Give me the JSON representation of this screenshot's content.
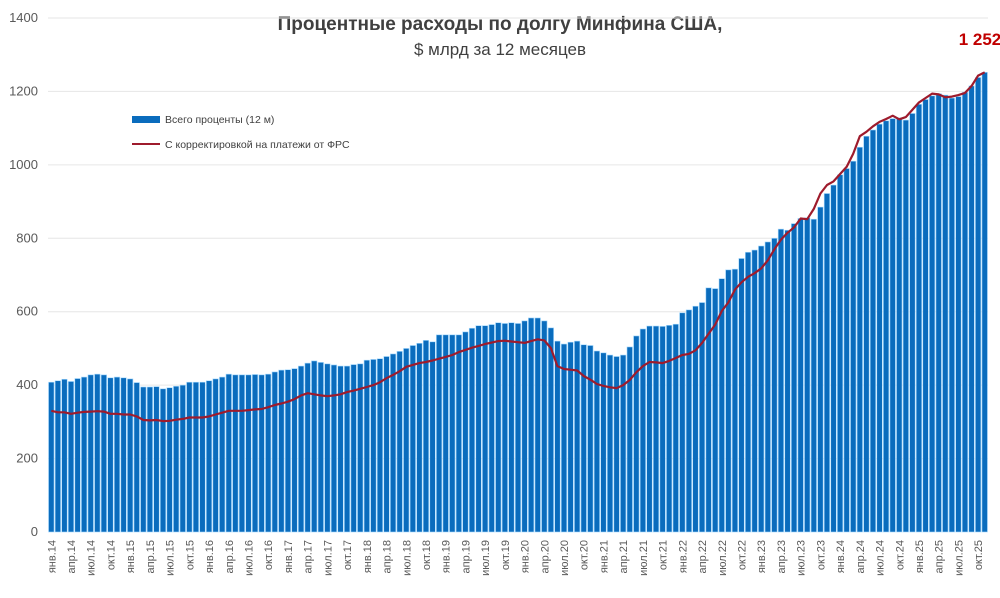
{
  "chart_data": {
    "type": "bar",
    "title": "Процентные расходы по долгу Минфина США,",
    "subtitle": "$ млрд за 12 месяцев",
    "ylim": [
      0,
      1400
    ],
    "yticks": [
      0,
      200,
      400,
      600,
      800,
      1000,
      1200,
      1400
    ],
    "grid": true,
    "legend_position": "top-left",
    "end_label": "1 252",
    "colors": {
      "bars": "#0A6CBD",
      "bar_edge": "#A8DBFF",
      "line": "#9E1B2C",
      "end_label": "#C00000",
      "grid": "#E6E6E6"
    },
    "x_tick_labels": [
      "янв.14",
      "апр.14",
      "июл.14",
      "окт.14",
      "янв.15",
      "апр.15",
      "июл.15",
      "окт.15",
      "янв.16",
      "апр.16",
      "июл.16",
      "окт.16",
      "янв.17",
      "апр.17",
      "июл.17",
      "окт.17",
      "янв.18",
      "апр.18",
      "июл.18",
      "окт.18",
      "янв.19",
      "апр.19",
      "июл.19",
      "окт.19",
      "янв.20",
      "апр.20",
      "июл.20",
      "окт.20",
      "янв.21",
      "апр.21",
      "июл.21",
      "окт.21",
      "янв.22",
      "апр.22",
      "июл.22",
      "окт.22",
      "янв.23",
      "апр.23",
      "июл.23",
      "окт.23",
      "янв.24",
      "апр.24",
      "июл.24",
      "окт.24",
      "янв.25",
      "апр.25",
      "июл.25",
      "окт.25"
    ],
    "series": [
      {
        "name": "Всего проценты (12 м)",
        "kind": "bar",
        "values": [
          408,
          412,
          416,
          410,
          418,
          422,
          428,
          430,
          428,
          420,
          422,
          420,
          417,
          407,
          395,
          395,
          396,
          390,
          393,
          397,
          400,
          408,
          408,
          408,
          412,
          417,
          422,
          430,
          428,
          428,
          428,
          429,
          428,
          430,
          436,
          441,
          442,
          445,
          452,
          460,
          466,
          462,
          458,
          455,
          452,
          452,
          456,
          458,
          468,
          470,
          472,
          478,
          485,
          492,
          500,
          508,
          514,
          522,
          518,
          537,
          537,
          537,
          537,
          545,
          555,
          562,
          562,
          565,
          570,
          568,
          570,
          568,
          575,
          583,
          583,
          575,
          556,
          520,
          512,
          517,
          520,
          510,
          508,
          493,
          488,
          482,
          478,
          482,
          504,
          534,
          553,
          561,
          561,
          560,
          563,
          566,
          597,
          605,
          615,
          625,
          665,
          663,
          690,
          714,
          716,
          745,
          762,
          768,
          779,
          790,
          800,
          825,
          822,
          840,
          854,
          856,
          852,
          885,
          922,
          945,
          973,
          990,
          1010,
          1048,
          1078,
          1095,
          1111,
          1120,
          1126,
          1128,
          1122,
          1140,
          1165,
          1178,
          1188,
          1194,
          1190,
          1182,
          1186,
          1198,
          1215,
          1238,
          1252
        ]
      },
      {
        "name": "С корректировкой на платежи от ФРС",
        "kind": "line",
        "values": [
          330,
          326,
          326,
          322,
          325,
          327,
          328,
          329,
          328,
          322,
          322,
          320,
          320,
          315,
          305,
          304,
          305,
          302,
          303,
          306,
          308,
          312,
          312,
          312,
          315,
          320,
          325,
          330,
          330,
          330,
          332,
          334,
          335,
          340,
          346,
          350,
          355,
          362,
          372,
          378,
          375,
          372,
          370,
          372,
          375,
          381,
          385,
          390,
          395,
          400,
          408,
          419,
          428,
          438,
          450,
          455,
          460,
          463,
          467,
          472,
          477,
          482,
          490,
          496,
          502,
          507,
          512,
          516,
          520,
          521,
          519,
          517,
          515,
          520,
          525,
          522,
          501,
          452,
          444,
          442,
          440,
          425,
          415,
          403,
          398,
          394,
          392,
          400,
          414,
          435,
          452,
          463,
          462,
          460,
          466,
          474,
          482,
          485,
          495,
          515,
          540,
          565,
          602,
          625,
          660,
          680,
          695,
          705,
          718,
          740,
          770,
          796,
          815,
          830,
          854,
          852,
          880,
          922,
          945,
          955,
          975,
          995,
          1030,
          1078,
          1090,
          1105,
          1117,
          1125,
          1134,
          1124,
          1130,
          1150,
          1170,
          1182,
          1194,
          1192,
          1184,
          1186,
          1190,
          1196,
          1215,
          1243,
          1252
        ]
      }
    ]
  }
}
